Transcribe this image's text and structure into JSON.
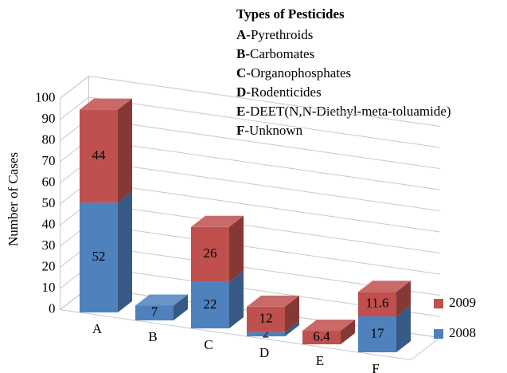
{
  "chart_data": {
    "type": "bar3d_stacked",
    "y_axis_label": "Number of Cases",
    "key_title": "Types of Pesticides",
    "key_items": [
      {
        "code": "A",
        "label": "-Pyrethroids"
      },
      {
        "code": "B",
        "label": "-Carbomates"
      },
      {
        "code": "C",
        "label": "-Organophosphates"
      },
      {
        "code": "D",
        "label": "-Rodenticides"
      },
      {
        "code": "E",
        "label": "-DEET(N,N-Diethyl-meta-toluamide)"
      },
      {
        "code": "F",
        "label": "-Unknown"
      }
    ],
    "categories": [
      "A",
      "B",
      "C",
      "D",
      "E",
      "F"
    ],
    "series": [
      {
        "name": "2008",
        "color": "#4f81bd",
        "values": [
          52,
          7,
          22,
          2,
          null,
          17
        ]
      },
      {
        "name": "2009",
        "color": "#c0504d",
        "values": [
          44,
          null,
          26,
          12,
          6.4,
          11.6
        ]
      }
    ],
    "ylim": [
      0,
      100
    ],
    "yticks": [
      0,
      10,
      20,
      30,
      40,
      50,
      60,
      70,
      80,
      90,
      100
    ],
    "grid": true
  }
}
